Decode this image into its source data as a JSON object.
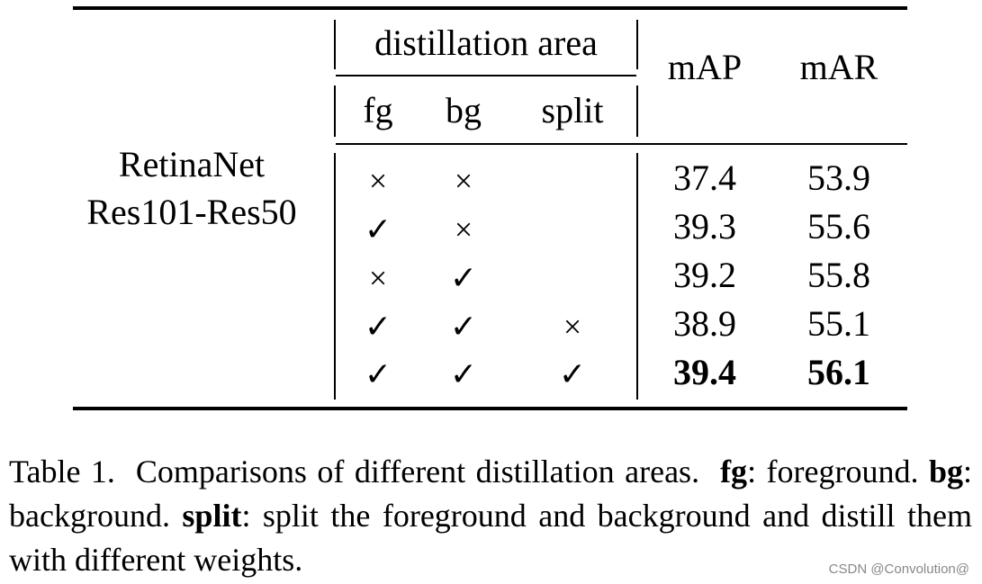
{
  "table": {
    "model_line1": "RetinaNet",
    "model_line2": "Res101-Res50",
    "group_header": "distillation area",
    "col_fg": "fg",
    "col_bg": "bg",
    "col_split": "split",
    "col_map": "mAP",
    "col_mar": "mAR",
    "check_symbol": "✓",
    "cross_symbol": "×",
    "rows": [
      {
        "fg": "×",
        "bg": "×",
        "split": "",
        "map": "37.4",
        "mar": "53.9",
        "bold": false
      },
      {
        "fg": "✓",
        "bg": "×",
        "split": "",
        "map": "39.3",
        "mar": "55.6",
        "bold": false
      },
      {
        "fg": "×",
        "bg": "✓",
        "split": "",
        "map": "39.2",
        "mar": "55.8",
        "bold": false
      },
      {
        "fg": "✓",
        "bg": "✓",
        "split": "×",
        "map": "38.9",
        "mar": "55.1",
        "bold": false
      },
      {
        "fg": "✓",
        "bg": "✓",
        "split": "✓",
        "map": "39.4",
        "mar": "56.1",
        "bold": true
      }
    ]
  },
  "caption": {
    "prefix": "Table 1.",
    "text1": "Comparisons of different distillation areas.",
    "fg_term": "fg",
    "fg_def": ": foreground.",
    "bg_term": "bg",
    "bg_def": ": background.",
    "split_term": "split",
    "split_def": ": split the foreground and background and distill them with different weights."
  },
  "watermark": "CSDN @Convolution@"
}
